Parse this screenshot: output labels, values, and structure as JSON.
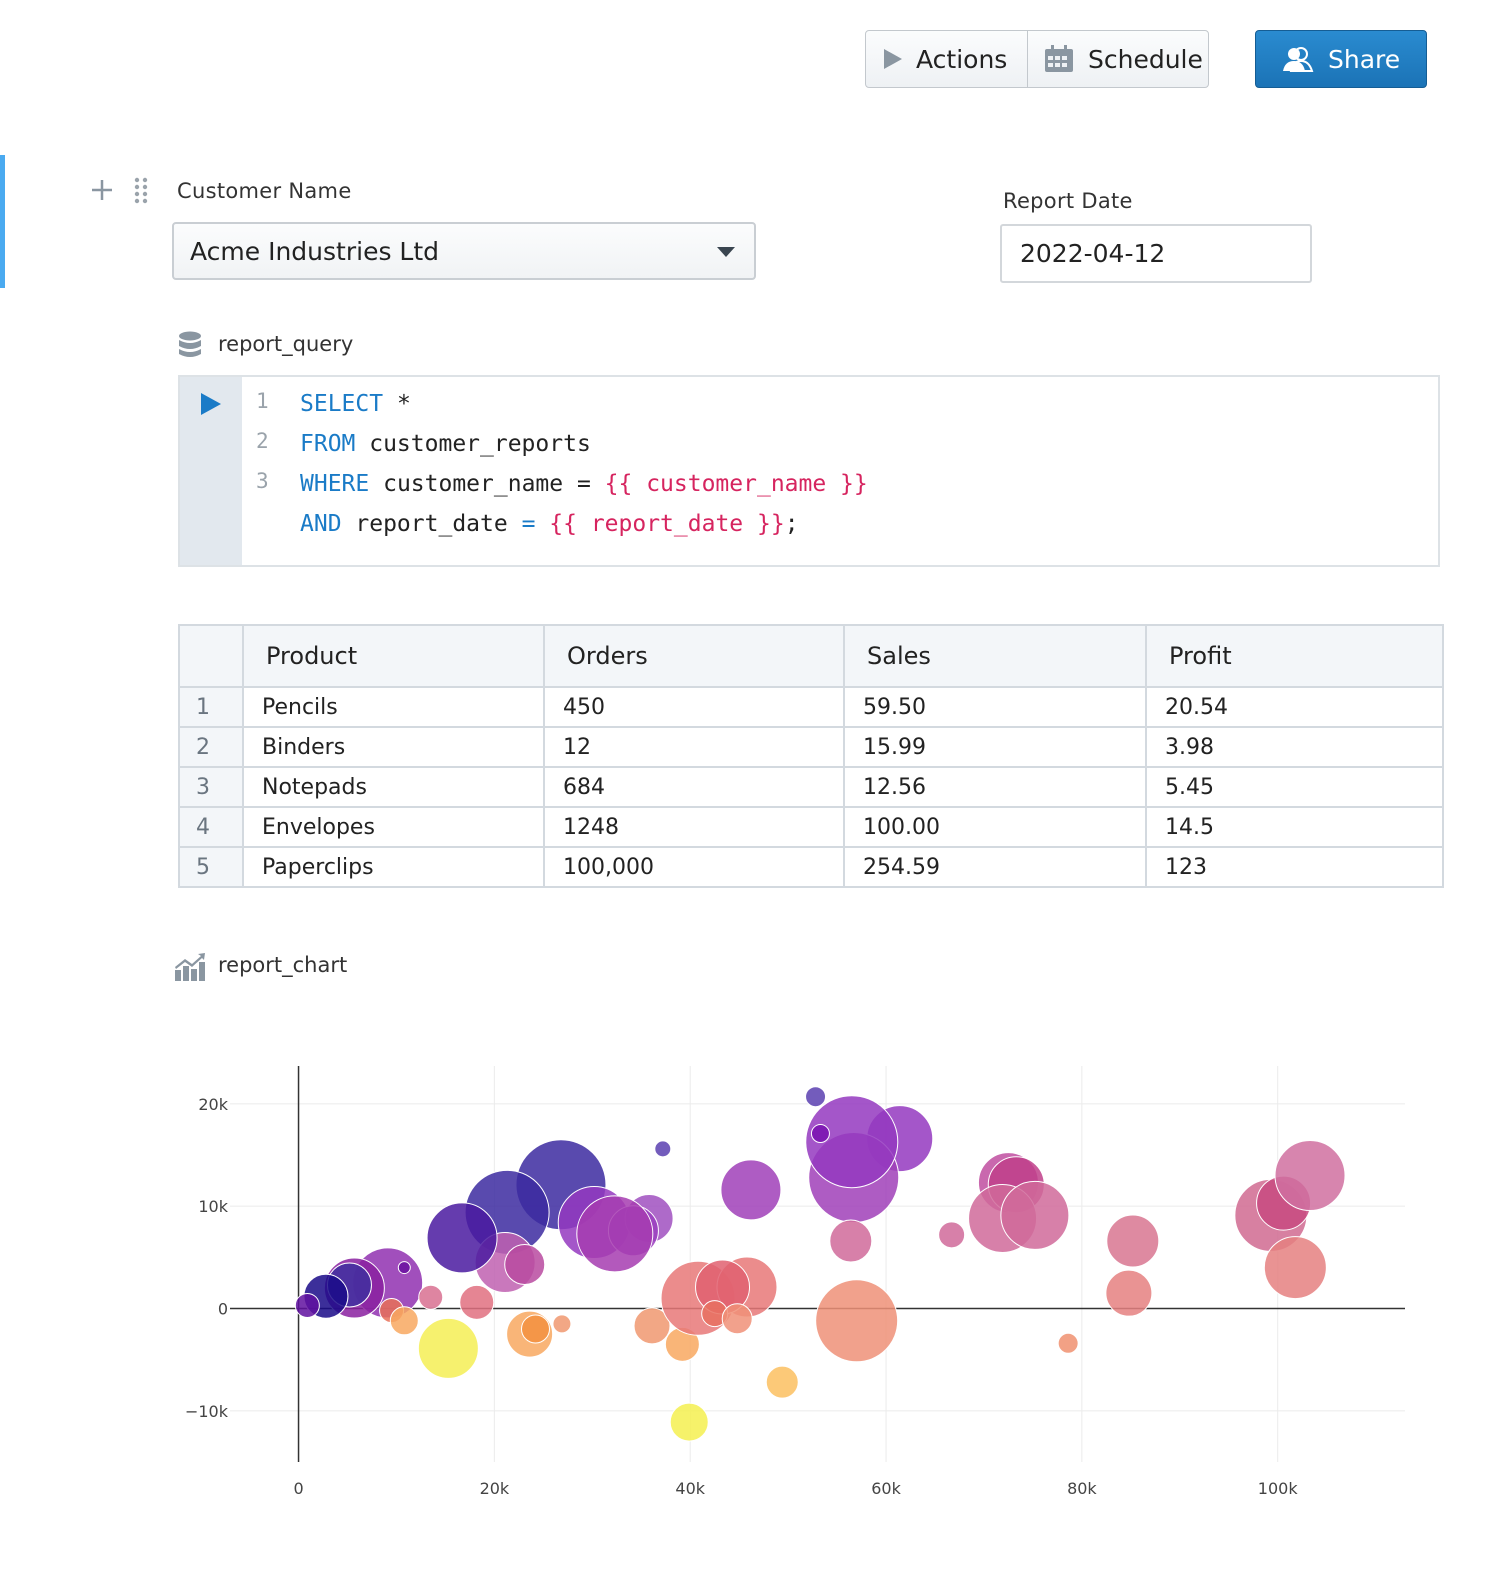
{
  "toolbar": {
    "actions_label": "Actions",
    "schedule_label": "Schedule",
    "share_label": "Share",
    "share_color": "#1f7cc1"
  },
  "params": {
    "customer_name": {
      "label": "Customer Name",
      "value": "Acme Industries Ltd"
    },
    "report_date": {
      "label": "Report Date",
      "value": "2022-04-12"
    }
  },
  "query_cell": {
    "title": "report_query",
    "lines": [
      {
        "num": "1",
        "tokens": [
          {
            "t": "SELECT",
            "k": "kw"
          },
          {
            "t": " *",
            "k": ""
          }
        ]
      },
      {
        "num": "2",
        "tokens": [
          {
            "t": "FROM",
            "k": "kw"
          },
          {
            "t": " customer_reports",
            "k": ""
          }
        ]
      },
      {
        "num": "3",
        "tokens": [
          {
            "t": "WHERE",
            "k": "kw"
          },
          {
            "t": " customer_name = ",
            "k": ""
          },
          {
            "t": "{{ customer_name }}",
            "k": "tpl"
          }
        ]
      },
      {
        "num": "",
        "tokens": [
          {
            "t": "AND",
            "k": "kw"
          },
          {
            "t": " report_date ",
            "k": ""
          },
          {
            "t": "=",
            "k": "kw"
          },
          {
            "t": " ",
            "k": ""
          },
          {
            "t": "{{ report_date }}",
            "k": "tpl"
          },
          {
            "t": ";",
            "k": ""
          }
        ]
      }
    ]
  },
  "table": {
    "columns": [
      "Product",
      "Orders",
      "Sales",
      "Profit"
    ],
    "rows": [
      [
        "1",
        "Pencils",
        "450",
        "59.50",
        "20.54"
      ],
      [
        "2",
        "Binders",
        "12",
        "15.99",
        "3.98"
      ],
      [
        "3",
        "Notepads",
        "684",
        "12.56",
        "5.45"
      ],
      [
        "4",
        "Envelopes",
        "1248",
        "100.00",
        "14.5"
      ],
      [
        "5",
        "Paperclips",
        "100,000",
        "254.59",
        "123"
      ]
    ]
  },
  "chart_cell": {
    "title": "report_chart"
  },
  "chart_data": {
    "type": "scatter",
    "marker": "bubble",
    "xlim": [
      -7000,
      113000
    ],
    "ylim": [
      -15000,
      23700
    ],
    "grid": true,
    "x_ticks": [
      0,
      20000,
      40000,
      60000,
      80000,
      100000
    ],
    "x_tick_labels": [
      "0",
      "20k",
      "40k",
      "60k",
      "80k",
      "100k"
    ],
    "y_ticks": [
      -10000,
      0,
      10000,
      20000
    ],
    "y_tick_labels": [
      "−10k",
      "0",
      "10k",
      "20k"
    ],
    "points": [
      {
        "x": 52800,
        "y": 20700,
        "size": 10,
        "color": "#5a3fb0"
      },
      {
        "x": 61400,
        "y": 16600,
        "size": 33,
        "color": "#9438c0"
      },
      {
        "x": 56700,
        "y": 12800,
        "size": 45,
        "color": "#a040b8"
      },
      {
        "x": 56500,
        "y": 16300,
        "size": 46,
        "color": "#9438c0"
      },
      {
        "x": 53300,
        "y": 17100,
        "size": 9,
        "color": "#7a10b0"
      },
      {
        "x": 56400,
        "y": 6600,
        "size": 21,
        "color": "#d06a9a"
      },
      {
        "x": 57000,
        "y": -1200,
        "size": 41,
        "color": "#ee9078"
      },
      {
        "x": 37200,
        "y": 15600,
        "size": 8,
        "color": "#5a3fb0"
      },
      {
        "x": 46200,
        "y": 11600,
        "size": 30,
        "color": "#a040b8"
      },
      {
        "x": 26800,
        "y": 12100,
        "size": 45,
        "color": "#3c2aa0"
      },
      {
        "x": 21300,
        "y": 9400,
        "size": 42,
        "color": "#3c2aa0"
      },
      {
        "x": 21100,
        "y": 4500,
        "size": 30,
        "color": "#c060b0"
      },
      {
        "x": 23100,
        "y": 4300,
        "size": 20,
        "color": "#b84aa0"
      },
      {
        "x": 16700,
        "y": 6900,
        "size": 35,
        "color": "#4a1aa0"
      },
      {
        "x": 30200,
        "y": 8400,
        "size": 36,
        "color": "#9438c0"
      },
      {
        "x": 35800,
        "y": 8800,
        "size": 24,
        "color": "#a050c0"
      },
      {
        "x": 34200,
        "y": 7600,
        "size": 25,
        "color": "#9b40c0"
      },
      {
        "x": 32300,
        "y": 7300,
        "size": 38,
        "color": "#a63cb0"
      },
      {
        "x": 9100,
        "y": 2500,
        "size": 35,
        "color": "#9030b0"
      },
      {
        "x": 5700,
        "y": 2000,
        "size": 30,
        "color": "#8a20a0"
      },
      {
        "x": 5200,
        "y": 2300,
        "size": 22,
        "color": "#3f2f9f"
      },
      {
        "x": 2800,
        "y": 1200,
        "size": 22,
        "color": "#1a0a88"
      },
      {
        "x": 900,
        "y": 300,
        "size": 12,
        "color": "#6010a0"
      },
      {
        "x": 10800,
        "y": 4000,
        "size": 6,
        "color": "#6a10a0"
      },
      {
        "x": 13500,
        "y": 1100,
        "size": 12,
        "color": "#d87090"
      },
      {
        "x": 18200,
        "y": 600,
        "size": 17,
        "color": "#e07080"
      },
      {
        "x": 9500,
        "y": -200,
        "size": 12,
        "color": "#e77058"
      },
      {
        "x": 10800,
        "y": -1200,
        "size": 14,
        "color": "#f8a860"
      },
      {
        "x": 15300,
        "y": -3900,
        "size": 30,
        "color": "#f5ee55"
      },
      {
        "x": 23600,
        "y": -2500,
        "size": 23,
        "color": "#f8a860"
      },
      {
        "x": 24200,
        "y": -2000,
        "size": 14,
        "color": "#f39040"
      },
      {
        "x": 26900,
        "y": -1500,
        "size": 9,
        "color": "#f09870"
      },
      {
        "x": 36100,
        "y": -1700,
        "size": 18,
        "color": "#f09870"
      },
      {
        "x": 39200,
        "y": -3500,
        "size": 17,
        "color": "#f8a860"
      },
      {
        "x": 40800,
        "y": 1000,
        "size": 37,
        "color": "#e87878"
      },
      {
        "x": 45800,
        "y": 2100,
        "size": 30,
        "color": "#e87878"
      },
      {
        "x": 43300,
        "y": 2100,
        "size": 27,
        "color": "#e06070"
      },
      {
        "x": 42500,
        "y": -500,
        "size": 13,
        "color": "#e87060"
      },
      {
        "x": 44800,
        "y": -1000,
        "size": 15,
        "color": "#f09078"
      },
      {
        "x": 49400,
        "y": -7200,
        "size": 16,
        "color": "#fbc060"
      },
      {
        "x": 39900,
        "y": -11100,
        "size": 19,
        "color": "#f5f050"
      },
      {
        "x": 66700,
        "y": 7200,
        "size": 13,
        "color": "#d06a9a"
      },
      {
        "x": 72500,
        "y": 12300,
        "size": 30,
        "color": "#c04ea0"
      },
      {
        "x": 73300,
        "y": 12100,
        "size": 28,
        "color": "#c0408a"
      },
      {
        "x": 71900,
        "y": 8800,
        "size": 34,
        "color": "#d06a9a"
      },
      {
        "x": 75200,
        "y": 9100,
        "size": 34,
        "color": "#d06a9a"
      },
      {
        "x": 78600,
        "y": -3400,
        "size": 10,
        "color": "#f09070"
      },
      {
        "x": 85200,
        "y": 6600,
        "size": 26,
        "color": "#d87590"
      },
      {
        "x": 84800,
        "y": 1500,
        "size": 23,
        "color": "#e58080"
      },
      {
        "x": 99300,
        "y": 9100,
        "size": 36,
        "color": "#d06a90"
      },
      {
        "x": 100600,
        "y": 10300,
        "size": 27,
        "color": "#c84a80"
      },
      {
        "x": 103300,
        "y": 13000,
        "size": 35,
        "color": "#d070a0"
      },
      {
        "x": 101800,
        "y": 4000,
        "size": 31,
        "color": "#e58080"
      }
    ]
  }
}
